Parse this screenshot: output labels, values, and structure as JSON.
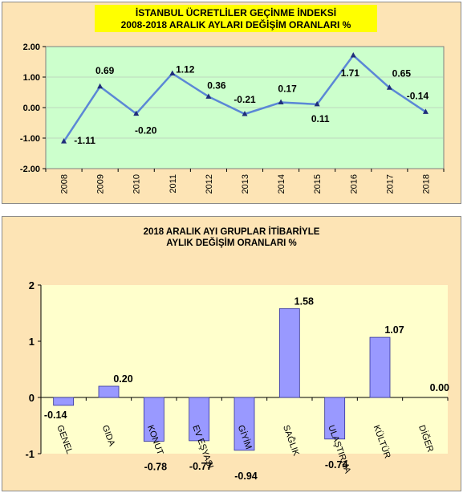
{
  "chart_data": [
    {
      "type": "line",
      "title_line1": "İSTANBUL ÜCRETLİLER GEÇİNME İNDEKSİ",
      "title_line2": "2008-2018  ARALIK AYLARI DEĞİŞİM  ORANLARI %",
      "x": [
        "2008",
        "2009",
        "2010",
        "2011",
        "2012",
        "2013",
        "2014",
        "2015",
        "2016",
        "2017",
        "2018"
      ],
      "values": [
        -1.11,
        0.69,
        -0.2,
        1.12,
        0.36,
        -0.21,
        0.17,
        0.11,
        1.71,
        0.65,
        -0.14
      ],
      "data_labels": [
        "-1.11",
        "0.69",
        "-0.20",
        "1.12",
        "0.36",
        "-0.21",
        "0.17",
        "0.11",
        "1.71",
        "0.65",
        "-0.14"
      ],
      "y_ticks": [
        "2.00",
        "1.00",
        "0.00",
        "-1.00",
        "-2.00"
      ],
      "ylim": [
        -2,
        2
      ],
      "colors": {
        "plot_bg": "#ccffcc",
        "line": "#5b87d6",
        "marker": "#1f2d7a",
        "panel_bg": "#fde4b5",
        "title_bg": "#ffff00"
      }
    },
    {
      "type": "bar",
      "title_line1": "2018 ARALIK AYI  GRUPLAR İTİBARİYLE",
      "title_line2": "AYLIK DEĞİŞİM   ORANLARI  %",
      "categories": [
        "GENEL",
        "GIDA",
        "KONUT",
        "EV EŞYASI",
        "GİYİM",
        "SAĞLIK",
        "ULAŞTIRMA",
        "KÜLTÜR",
        "DİĞER"
      ],
      "values": [
        -0.14,
        0.2,
        -0.78,
        -0.77,
        -0.94,
        1.58,
        -0.74,
        1.07,
        0.0
      ],
      "data_labels": [
        "-0.14",
        "0.20",
        "-0.78",
        "-0.77",
        "-0.94",
        "1.58",
        "-0.74",
        "1.07",
        "0.00"
      ],
      "y_ticks": [
        "2",
        "1",
        "0",
        "-1"
      ],
      "ylim": [
        -1,
        2
      ],
      "colors": {
        "plot_bg": "#ffffcc",
        "bar": "#9999ff",
        "bar_edge": "#333399",
        "panel_bg": "#fde4b5"
      }
    }
  ]
}
